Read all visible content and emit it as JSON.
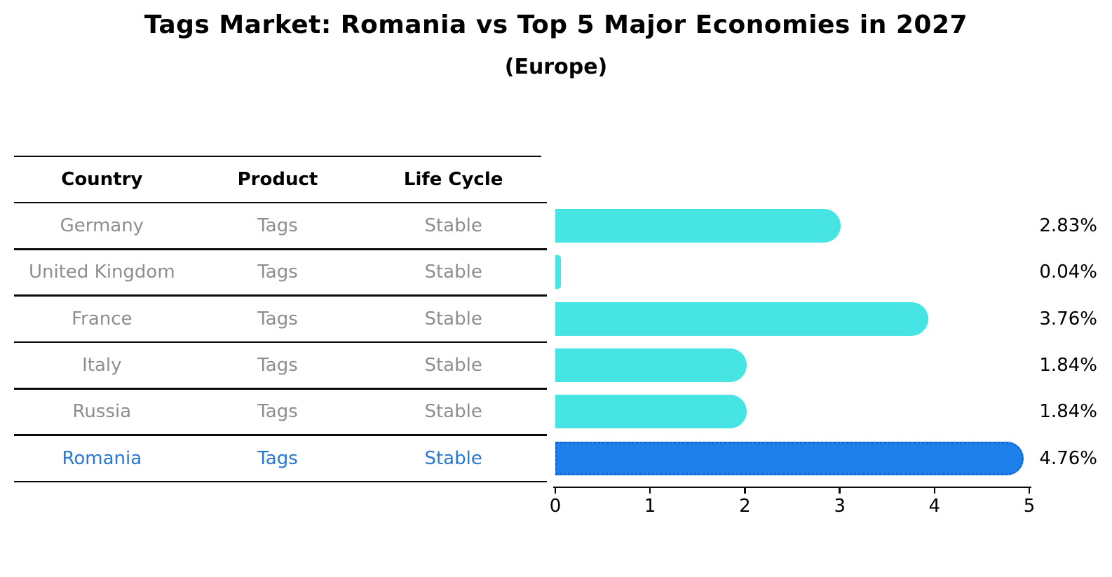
{
  "title": "Tags Market: Romania vs Top 5 Major Economies in 2027",
  "subtitle": "(Europe)",
  "table": {
    "headers": [
      "Country",
      "Product",
      "Life Cycle"
    ],
    "rows": [
      {
        "country": "Germany",
        "product": "Tags",
        "life_cycle": "Stable",
        "highlight": false
      },
      {
        "country": "United Kingdom",
        "product": "Tags",
        "life_cycle": "Stable",
        "highlight": false
      },
      {
        "country": "France",
        "product": "Tags",
        "life_cycle": "Stable",
        "highlight": false
      },
      {
        "country": "Italy",
        "product": "Tags",
        "life_cycle": "Stable",
        "highlight": false
      },
      {
        "country": "Russia",
        "product": "Tags",
        "life_cycle": "Stable",
        "highlight": false
      },
      {
        "country": "Romania",
        "product": "Tags",
        "life_cycle": "Stable",
        "highlight": true
      }
    ]
  },
  "chart_data": {
    "type": "bar",
    "orientation": "horizontal",
    "title": "Tags Market: Romania vs Top 5 Major Economies in 2027",
    "subtitle": "(Europe)",
    "categories": [
      "Germany",
      "United Kingdom",
      "France",
      "Italy",
      "Russia",
      "Romania"
    ],
    "values": [
      2.83,
      0.04,
      3.76,
      1.84,
      1.84,
      4.76
    ],
    "value_labels": [
      "2.83%",
      "0.04%",
      "3.76%",
      "1.84%",
      "1.84%",
      "4.76%"
    ],
    "unit": "%",
    "xlim": [
      0,
      5
    ],
    "x_ticks": [
      "0",
      "1",
      "2",
      "3",
      "4",
      "5"
    ],
    "highlight_index": 5,
    "grid": false,
    "legend": null
  },
  "colors": {
    "bar": "#46E4E2",
    "highlight_bar": "#1E80EB",
    "highlight_bar_border": "#1565D8",
    "row_text": "#8E8E8E",
    "highlight_row_text": "#2778CF",
    "header_text": "#000000",
    "axis": "#000000",
    "value_label_text": "#000000"
  }
}
